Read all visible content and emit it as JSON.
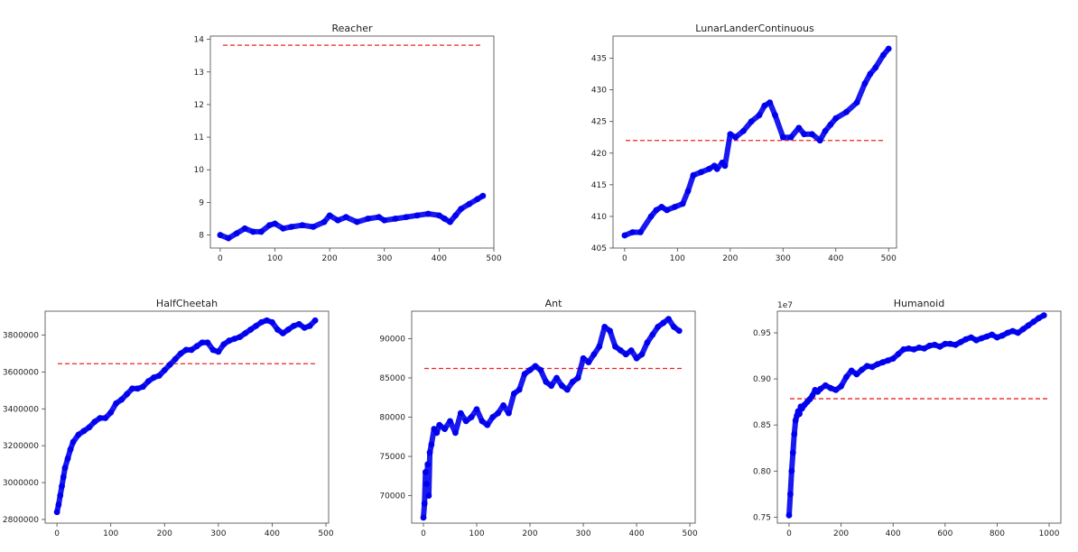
{
  "colors": {
    "points": "#0000ee",
    "baseline": "#ee2222",
    "axes": "#444444"
  },
  "chart_data": [
    {
      "type": "scatter",
      "title": "Reacher",
      "xlim": [
        -18,
        500
      ],
      "ylim": [
        7.6,
        14.1
      ],
      "xticks": [
        0,
        100,
        200,
        300,
        400,
        500
      ],
      "yticks": [
        8,
        9,
        10,
        11,
        12,
        13,
        14
      ],
      "xtick_labels": [
        "0",
        "100",
        "200",
        "300",
        "400",
        "500"
      ],
      "ytick_labels": [
        "8",
        "9",
        "10",
        "11",
        "12",
        "13",
        "14"
      ],
      "baseline": 13.82,
      "series": [
        {
          "x": [
            0,
            15,
            30,
            45,
            60,
            75,
            90,
            100,
            115,
            130,
            150,
            170,
            190,
            200,
            215,
            230,
            250,
            270,
            290,
            300,
            320,
            340,
            360,
            380,
            400,
            410,
            420,
            430,
            440,
            455,
            470,
            480
          ],
          "y": [
            8.0,
            7.9,
            8.05,
            8.2,
            8.1,
            8.1,
            8.3,
            8.35,
            8.2,
            8.25,
            8.3,
            8.25,
            8.4,
            8.6,
            8.45,
            8.55,
            8.4,
            8.5,
            8.55,
            8.45,
            8.5,
            8.55,
            8.6,
            8.65,
            8.6,
            8.5,
            8.4,
            8.6,
            8.8,
            8.95,
            9.1,
            9.2
          ]
        }
      ]
    },
    {
      "type": "scatter",
      "title": "LunarLanderContinuous",
      "xlim": [
        -22,
        515
      ],
      "ylim": [
        405,
        438.5
      ],
      "xticks": [
        0,
        100,
        200,
        300,
        400,
        500
      ],
      "yticks": [
        405,
        410,
        415,
        420,
        425,
        430,
        435
      ],
      "xtick_labels": [
        "0",
        "100",
        "200",
        "300",
        "400",
        "500"
      ],
      "ytick_labels": [
        "405",
        "410",
        "415",
        "420",
        "425",
        "430",
        "435"
      ],
      "baseline": 422,
      "series": [
        {
          "x": [
            0,
            15,
            30,
            50,
            60,
            70,
            80,
            95,
            110,
            120,
            130,
            145,
            160,
            170,
            175,
            185,
            190,
            200,
            210,
            225,
            240,
            255,
            265,
            275,
            285,
            300,
            315,
            330,
            340,
            355,
            370,
            380,
            390,
            400,
            420,
            440,
            455,
            465,
            475,
            490,
            500
          ],
          "y": [
            407,
            407.5,
            407.5,
            410,
            411,
            411.5,
            411,
            411.5,
            412,
            414,
            416.5,
            417,
            417.5,
            418,
            417.5,
            418.5,
            418,
            423,
            422.5,
            423.5,
            425,
            426,
            427.5,
            428,
            426,
            422.5,
            422.5,
            424,
            423,
            423,
            422,
            423.5,
            424.5,
            425.5,
            426.5,
            428,
            431,
            432.5,
            433.5,
            435.5,
            436.5
          ]
        }
      ]
    },
    {
      "type": "scatter",
      "title": "HalfCheetah",
      "xlim": [
        -22,
        505
      ],
      "ylim": [
        2780000,
        3930000
      ],
      "xticks": [
        0,
        100,
        200,
        300,
        400,
        500
      ],
      "yticks": [
        2800000,
        3000000,
        3200000,
        3400000,
        3600000,
        3800000
      ],
      "xtick_labels": [
        "0",
        "100",
        "200",
        "300",
        "400",
        "500"
      ],
      "ytick_labels": [
        "2800000",
        "3000000",
        "3200000",
        "3400000",
        "3600000",
        "3800000"
      ],
      "baseline": 3645000,
      "series": [
        {
          "x": [
            0,
            3,
            6,
            9,
            12,
            15,
            20,
            25,
            30,
            40,
            50,
            60,
            70,
            80,
            90,
            100,
            110,
            120,
            130,
            140,
            150,
            160,
            170,
            180,
            190,
            200,
            210,
            220,
            230,
            240,
            250,
            260,
            270,
            280,
            290,
            300,
            310,
            320,
            330,
            340,
            350,
            360,
            370,
            380,
            390,
            400,
            410,
            420,
            430,
            440,
            450,
            460,
            470,
            480
          ],
          "y": [
            2840000,
            2880000,
            2930000,
            2980000,
            3030000,
            3080000,
            3130000,
            3180000,
            3220000,
            3260000,
            3280000,
            3300000,
            3330000,
            3350000,
            3350000,
            3380000,
            3430000,
            3450000,
            3480000,
            3510000,
            3510000,
            3520000,
            3550000,
            3570000,
            3580000,
            3610000,
            3640000,
            3670000,
            3700000,
            3720000,
            3720000,
            3740000,
            3760000,
            3760000,
            3720000,
            3710000,
            3750000,
            3770000,
            3780000,
            3790000,
            3810000,
            3830000,
            3850000,
            3870000,
            3880000,
            3870000,
            3830000,
            3810000,
            3830000,
            3850000,
            3860000,
            3840000,
            3850000,
            3880000
          ]
        }
      ]
    },
    {
      "type": "scatter",
      "title": "Ant",
      "xlim": [
        -22,
        510
      ],
      "ylim": [
        66500,
        93500
      ],
      "xticks": [
        0,
        100,
        200,
        300,
        400,
        500
      ],
      "yticks": [
        70000,
        75000,
        80000,
        85000,
        90000
      ],
      "xtick_labels": [
        "0",
        "100",
        "200",
        "300",
        "400",
        "500"
      ],
      "ytick_labels": [
        "70000",
        "75000",
        "80000",
        "85000",
        "90000"
      ],
      "baseline": 86200,
      "series": [
        {
          "x": [
            0,
            2,
            4,
            6,
            8,
            10,
            12,
            15,
            20,
            25,
            30,
            40,
            50,
            60,
            70,
            80,
            90,
            100,
            110,
            120,
            130,
            140,
            150,
            160,
            170,
            180,
            190,
            200,
            210,
            220,
            230,
            240,
            250,
            260,
            270,
            280,
            290,
            300,
            310,
            320,
            330,
            340,
            350,
            360,
            370,
            380,
            390,
            400,
            410,
            420,
            430,
            440,
            450,
            460,
            470,
            480
          ],
          "y": [
            67200,
            69000,
            73000,
            71500,
            74000,
            70000,
            75500,
            76500,
            78500,
            78000,
            79000,
            78500,
            79500,
            78000,
            80500,
            79500,
            80000,
            81000,
            79500,
            79000,
            80000,
            80500,
            81500,
            80500,
            83000,
            83500,
            85500,
            86000,
            86500,
            86000,
            84500,
            84000,
            85000,
            84000,
            83500,
            84500,
            85000,
            87500,
            87000,
            88000,
            89000,
            91500,
            91000,
            89000,
            88500,
            88000,
            88500,
            87500,
            88000,
            89500,
            90500,
            91500,
            92000,
            92500,
            91500,
            91000
          ]
        }
      ]
    },
    {
      "type": "scatter",
      "title": "Humanoid",
      "offset_label": "1e7",
      "xlim": [
        -45,
        1045
      ],
      "ylim": [
        0.7435,
        0.9735
      ],
      "xticks": [
        0,
        200,
        400,
        600,
        800,
        1000
      ],
      "yticks": [
        0.75,
        0.8,
        0.85,
        0.9,
        0.95
      ],
      "xtick_labels": [
        "0",
        "200",
        "400",
        "600",
        "800",
        "1000"
      ],
      "ytick_labels": [
        "0.75",
        "0.80",
        "0.85",
        "0.90",
        "0.95"
      ],
      "baseline": 0.8785,
      "series": [
        {
          "x": [
            0,
            5,
            10,
            15,
            20,
            25,
            30,
            35,
            40,
            45,
            50,
            60,
            70,
            80,
            90,
            100,
            110,
            120,
            140,
            160,
            180,
            200,
            220,
            240,
            260,
            280,
            300,
            320,
            340,
            360,
            380,
            400,
            420,
            440,
            460,
            480,
            500,
            520,
            540,
            560,
            580,
            600,
            620,
            640,
            660,
            680,
            700,
            720,
            740,
            760,
            780,
            800,
            820,
            840,
            860,
            880,
            900,
            920,
            940,
            960,
            980
          ],
          "y": [
            0.752,
            0.775,
            0.8,
            0.82,
            0.84,
            0.855,
            0.86,
            0.865,
            0.862,
            0.87,
            0.868,
            0.872,
            0.875,
            0.878,
            0.882,
            0.888,
            0.886,
            0.889,
            0.893,
            0.89,
            0.888,
            0.892,
            0.902,
            0.909,
            0.905,
            0.91,
            0.914,
            0.913,
            0.916,
            0.918,
            0.92,
            0.922,
            0.927,
            0.932,
            0.933,
            0.932,
            0.934,
            0.933,
            0.936,
            0.937,
            0.935,
            0.938,
            0.938,
            0.937,
            0.94,
            0.943,
            0.945,
            0.942,
            0.944,
            0.946,
            0.948,
            0.945,
            0.947,
            0.95,
            0.952,
            0.95,
            0.954,
            0.958,
            0.962,
            0.966,
            0.969
          ]
        }
      ]
    }
  ]
}
